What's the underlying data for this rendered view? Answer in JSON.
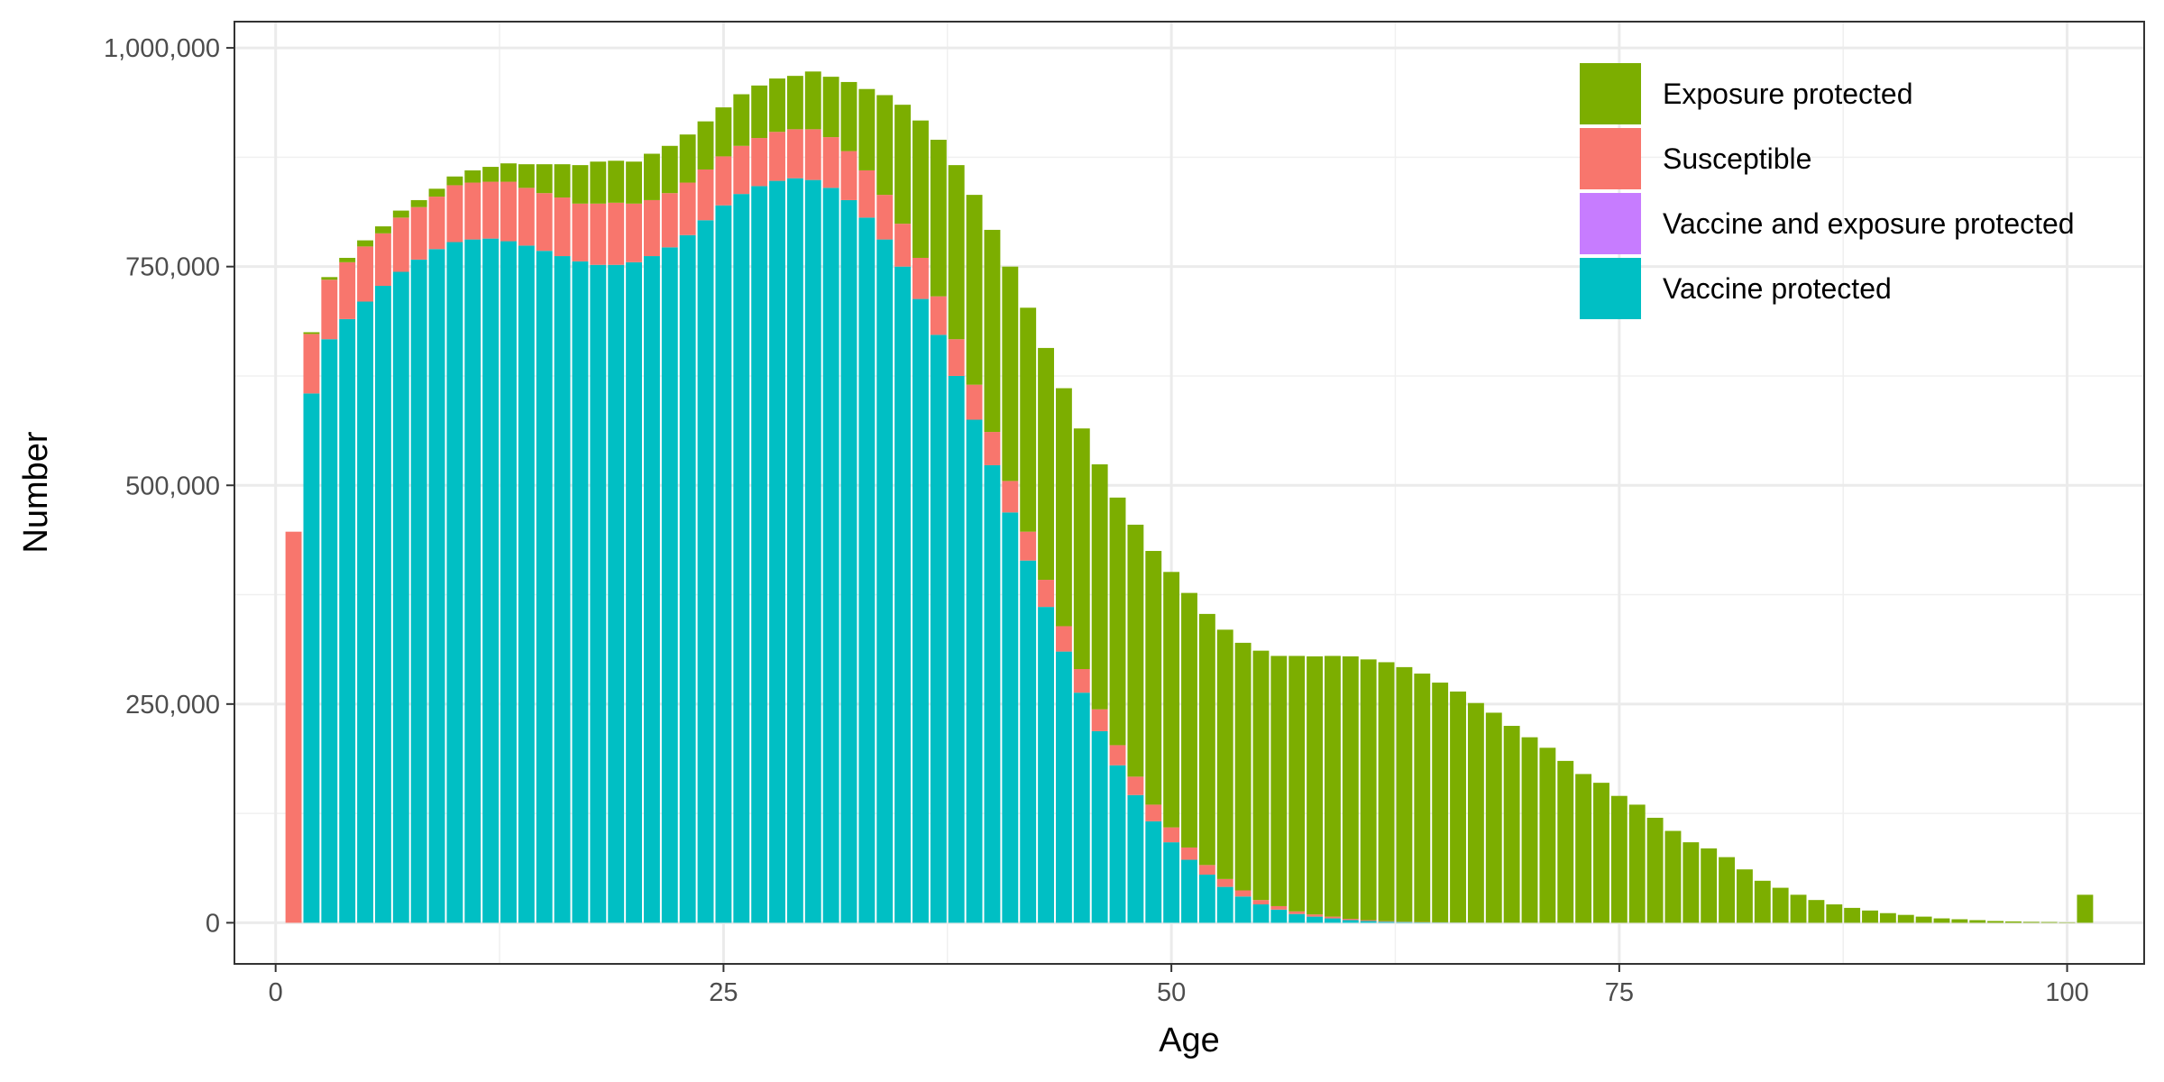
{
  "chart_data": {
    "type": "bar",
    "stacked": true,
    "xlabel": "Age",
    "ylabel": "Number",
    "xlim": [
      -2.3,
      104.3
    ],
    "ylim": [
      -47000,
      1030000
    ],
    "x_ticks": [
      0,
      25,
      50,
      75,
      100
    ],
    "x_tick_labels": [
      "0",
      "25",
      "50",
      "75",
      "100"
    ],
    "y_ticks": [
      0,
      250000,
      500000,
      750000,
      1000000
    ],
    "y_tick_labels": [
      "0",
      "250,000",
      "500,000",
      "750,000",
      "1,000,000"
    ],
    "grid": true,
    "legend_position": "top-right",
    "legend": [
      {
        "name": "Exposure protected",
        "color": "#7CAE00"
      },
      {
        "name": "Susceptible",
        "color": "#F8766D"
      },
      {
        "name": "Vaccine and exposure protected",
        "color": "#C77CFF"
      },
      {
        "name": "Vaccine protected",
        "color": "#00BFC4"
      }
    ],
    "stack_order": [
      "Vaccine protected",
      "Vaccine and exposure protected",
      "Susceptible",
      "Exposure protected"
    ],
    "x": [
      1,
      2,
      3,
      4,
      5,
      6,
      7,
      8,
      9,
      10,
      11,
      12,
      13,
      14,
      15,
      16,
      17,
      18,
      19,
      20,
      21,
      22,
      23,
      24,
      25,
      26,
      27,
      28,
      29,
      30,
      31,
      32,
      33,
      34,
      35,
      36,
      37,
      38,
      39,
      40,
      41,
      42,
      43,
      44,
      45,
      46,
      47,
      48,
      49,
      50,
      51,
      52,
      53,
      54,
      55,
      56,
      57,
      58,
      59,
      60,
      61,
      62,
      63,
      64,
      65,
      66,
      67,
      68,
      69,
      70,
      71,
      72,
      73,
      74,
      75,
      76,
      77,
      78,
      79,
      80,
      81,
      82,
      83,
      84,
      85,
      86,
      87,
      88,
      89,
      90,
      91,
      92,
      93,
      94,
      95,
      96,
      97,
      98,
      99,
      100,
      101
    ],
    "series": [
      {
        "name": "Vaccine protected",
        "color": "#00BFC4",
        "values": [
          0,
          605000,
          667000,
          690000,
          710000,
          728000,
          744000,
          758000,
          770000,
          778000,
          781000,
          782000,
          779000,
          774000,
          768000,
          762000,
          756000,
          752000,
          752000,
          755000,
          762000,
          772000,
          786000,
          803000,
          820000,
          833000,
          842000,
          848000,
          851000,
          849000,
          840000,
          826000,
          806000,
          781000,
          750000,
          713000,
          672000,
          625000,
          575000,
          523000,
          469000,
          414000,
          361000,
          310000,
          263000,
          219000,
          180000,
          146000,
          116000,
          92000,
          72000,
          55000,
          41000,
          30000,
          21000,
          15000,
          10000,
          7000,
          5000,
          3000,
          2000,
          1200,
          800,
          500,
          300,
          200,
          100,
          60,
          40,
          20,
          10,
          5,
          0,
          0,
          0,
          0,
          0,
          0,
          0,
          0,
          0,
          0,
          0,
          0,
          0,
          0,
          0,
          0,
          0,
          0,
          0,
          0,
          0,
          0,
          0,
          0,
          0,
          0,
          0,
          0,
          0
        ]
      },
      {
        "name": "Vaccine and exposure protected",
        "color": "#C77CFF",
        "values": [
          0,
          0,
          0,
          0,
          0,
          0,
          0,
          0,
          0,
          0,
          0,
          0,
          0,
          0,
          0,
          0,
          0,
          0,
          0,
          0,
          0,
          0,
          0,
          0,
          0,
          0,
          0,
          0,
          0,
          0,
          0,
          0,
          0,
          0,
          0,
          0,
          0,
          0,
          0,
          0,
          0,
          0,
          0,
          0,
          0,
          0,
          0,
          0,
          0,
          0,
          0,
          0,
          0,
          0,
          0,
          0,
          0,
          0,
          0,
          0,
          0,
          0,
          0,
          0,
          0,
          0,
          0,
          0,
          0,
          0,
          0,
          0,
          0,
          0,
          0,
          0,
          0,
          0,
          0,
          0,
          0,
          0,
          0,
          0,
          0,
          0,
          0,
          0,
          0,
          0,
          0,
          0,
          0,
          0,
          0,
          0,
          0,
          0,
          0,
          0,
          0
        ]
      },
      {
        "name": "Susceptible",
        "color": "#F8766D",
        "values": [
          447000,
          68000,
          68000,
          65000,
          63000,
          60000,
          62000,
          60000,
          60000,
          65000,
          65000,
          65000,
          68000,
          66000,
          66000,
          67000,
          66000,
          70000,
          71000,
          67000,
          64000,
          62000,
          60000,
          58000,
          56000,
          55000,
          55000,
          56000,
          56000,
          58000,
          58000,
          56000,
          54000,
          51000,
          49000,
          47000,
          44000,
          42000,
          40000,
          38000,
          36000,
          33000,
          31000,
          29000,
          27000,
          25000,
          23000,
          21000,
          19000,
          17000,
          14000,
          11000,
          9000,
          7000,
          5000,
          4000,
          3000,
          2500,
          2000,
          1500,
          1000,
          600,
          400,
          300,
          200,
          100,
          60,
          40,
          20,
          0,
          0,
          0,
          0,
          0,
          0,
          0,
          0,
          0,
          0,
          0,
          0,
          0,
          0,
          0,
          0,
          0,
          0,
          0,
          0,
          0,
          0,
          0,
          0,
          0,
          0,
          0,
          0,
          0,
          0,
          0,
          0
        ]
      },
      {
        "name": "Exposure protected",
        "color": "#7CAE00",
        "values": [
          0,
          2000,
          3000,
          5000,
          7000,
          8000,
          8000,
          8000,
          9000,
          10000,
          14000,
          17000,
          21000,
          27000,
          33000,
          38000,
          44000,
          48000,
          48000,
          48000,
          53000,
          54000,
          55000,
          55000,
          56000,
          59000,
          60000,
          61000,
          61000,
          66000,
          69000,
          79000,
          93000,
          114000,
          136000,
          157000,
          179000,
          199000,
          217000,
          231000,
          245000,
          256000,
          265000,
          272000,
          275000,
          280000,
          283000,
          288000,
          290000,
          292000,
          291000,
          287000,
          285000,
          283000,
          285000,
          286000,
          292000,
          295000,
          298000,
          300000,
          298000,
          296000,
          291000,
          284000,
          274000,
          264000,
          251000,
          240000,
          225000,
          212000,
          200000,
          185000,
          170000,
          160000,
          145000,
          135000,
          120000,
          105000,
          92000,
          85000,
          75000,
          61000,
          48000,
          40000,
          32000,
          26000,
          21000,
          17000,
          14000,
          11000,
          9000,
          7000,
          5000,
          4000,
          3000,
          2000,
          1500,
          1000,
          800,
          500,
          32000
        ]
      }
    ]
  }
}
